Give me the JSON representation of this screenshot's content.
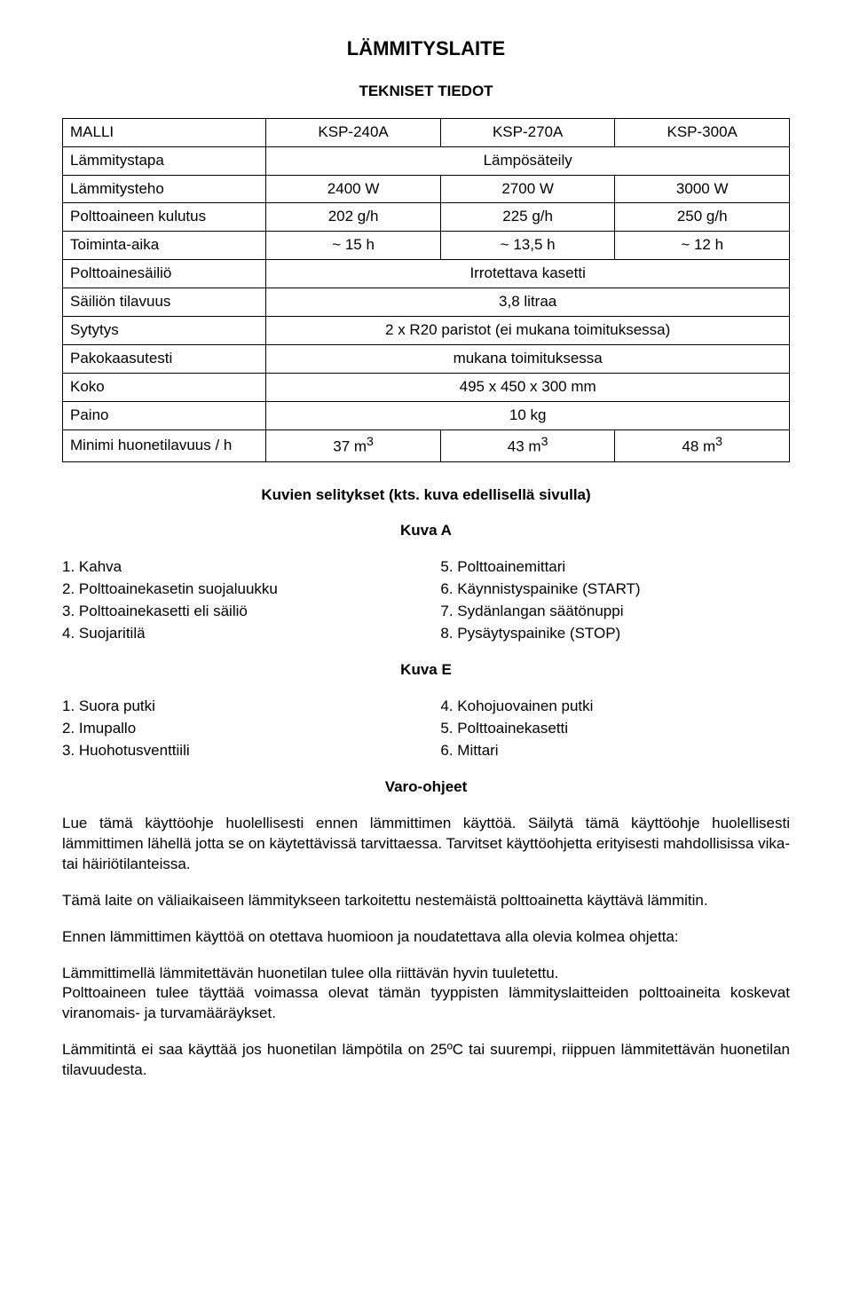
{
  "title": "LÄMMITYSLAITE",
  "subtitle": "TEKNISET TIEDOT",
  "table": {
    "header": [
      "MALLI",
      "KSP-240A",
      "KSP-270A",
      "KSP-300A"
    ],
    "rows": [
      {
        "label": "Lämmitystapa",
        "full": "Lämpösäteily"
      },
      {
        "label": "Lämmitysteho",
        "cells": [
          "2400 W",
          "2700 W",
          "3000 W"
        ]
      },
      {
        "label": "Polttoaineen kulutus",
        "cells": [
          "202 g/h",
          "225 g/h",
          "250 g/h"
        ]
      },
      {
        "label": "Toiminta-aika",
        "cells": [
          "~ 15 h",
          "~ 13,5 h",
          "~ 12 h"
        ]
      },
      {
        "label": "Polttoainesäiliö",
        "full": "Irrotettava kasetti"
      },
      {
        "label": "Säiliön tilavuus",
        "full": "3,8 litraa"
      },
      {
        "label": "Sytytys",
        "full": "2 x R20 paristot (ei mukana toimituksessa)"
      },
      {
        "label": "Pakokaasutesti",
        "full": "mukana toimituksessa"
      },
      {
        "label": "Koko",
        "full": "495 x 450 x 300 mm"
      },
      {
        "label": "Paino",
        "full": "10 kg"
      }
    ],
    "lastRow": {
      "label": "Minimi huonetilavuus / h",
      "cells": [
        "37 m",
        "43 m",
        "48 m"
      ],
      "sup": "3"
    }
  },
  "kuvien_title": "Kuvien selitykset (kts. kuva edellisellä sivulla)",
  "kuvaA": {
    "heading": "Kuva A",
    "left": [
      "1. Kahva",
      "2. Polttoainekasetin suojaluukku",
      "3. Polttoainekasetti eli säiliö",
      "4. Suojaritilä"
    ],
    "right": [
      "5. Polttoainemittari",
      "6. Käynnistyspainike (START)",
      "7. Sydänlangan säätönuppi",
      "8. Pysäytyspainike (STOP)"
    ]
  },
  "kuvaE": {
    "heading": "Kuva  E",
    "left": [
      "1. Suora putki",
      "2. Imupallo",
      "3. Huohotusventtiili"
    ],
    "right": [
      "4. Kohojuovainen putki",
      "5. Polttoainekasetti",
      "6. Mittari"
    ]
  },
  "varo": {
    "heading": "Varo-ohjeet",
    "p1": "Lue tämä käyttöohje huolellisesti ennen lämmittimen käyttöä. Säilytä tämä käyttöohje huolellisesti lämmittimen lähellä jotta se on käytettävissä tarvittaessa. Tarvitset käyttöohjetta erityisesti mahdollisissa vika- tai häiriötilanteissa.",
    "p2": "Tämä laite on väliaikaiseen lämmitykseen tarkoitettu nestemäistä polttoainetta käyttävä lämmitin.",
    "p3": "Ennen lämmittimen käyttöä on otettava huomioon ja noudatettava alla olevia kolmea ohjetta:",
    "p4a": "Lämmittimellä lämmitettävän huonetilan tulee olla riittävän hyvin tuuletettu.",
    "p4b": "Polttoaineen tulee täyttää voimassa olevat tämän tyyppisten lämmityslaitteiden polttoaineita koskevat viranomais- ja turvamääräykset.",
    "p5": "Lämmitintä ei saa käyttää jos huonetilan lämpötila on 25ºC tai suurempi, riippuen lämmitettävän huonetilan tilavuudesta."
  },
  "colors": {
    "text": "#000000",
    "bg": "#ffffff",
    "border": "#000000"
  },
  "fonts": {
    "family": "Arial",
    "size_body": 17,
    "size_title": 22
  }
}
